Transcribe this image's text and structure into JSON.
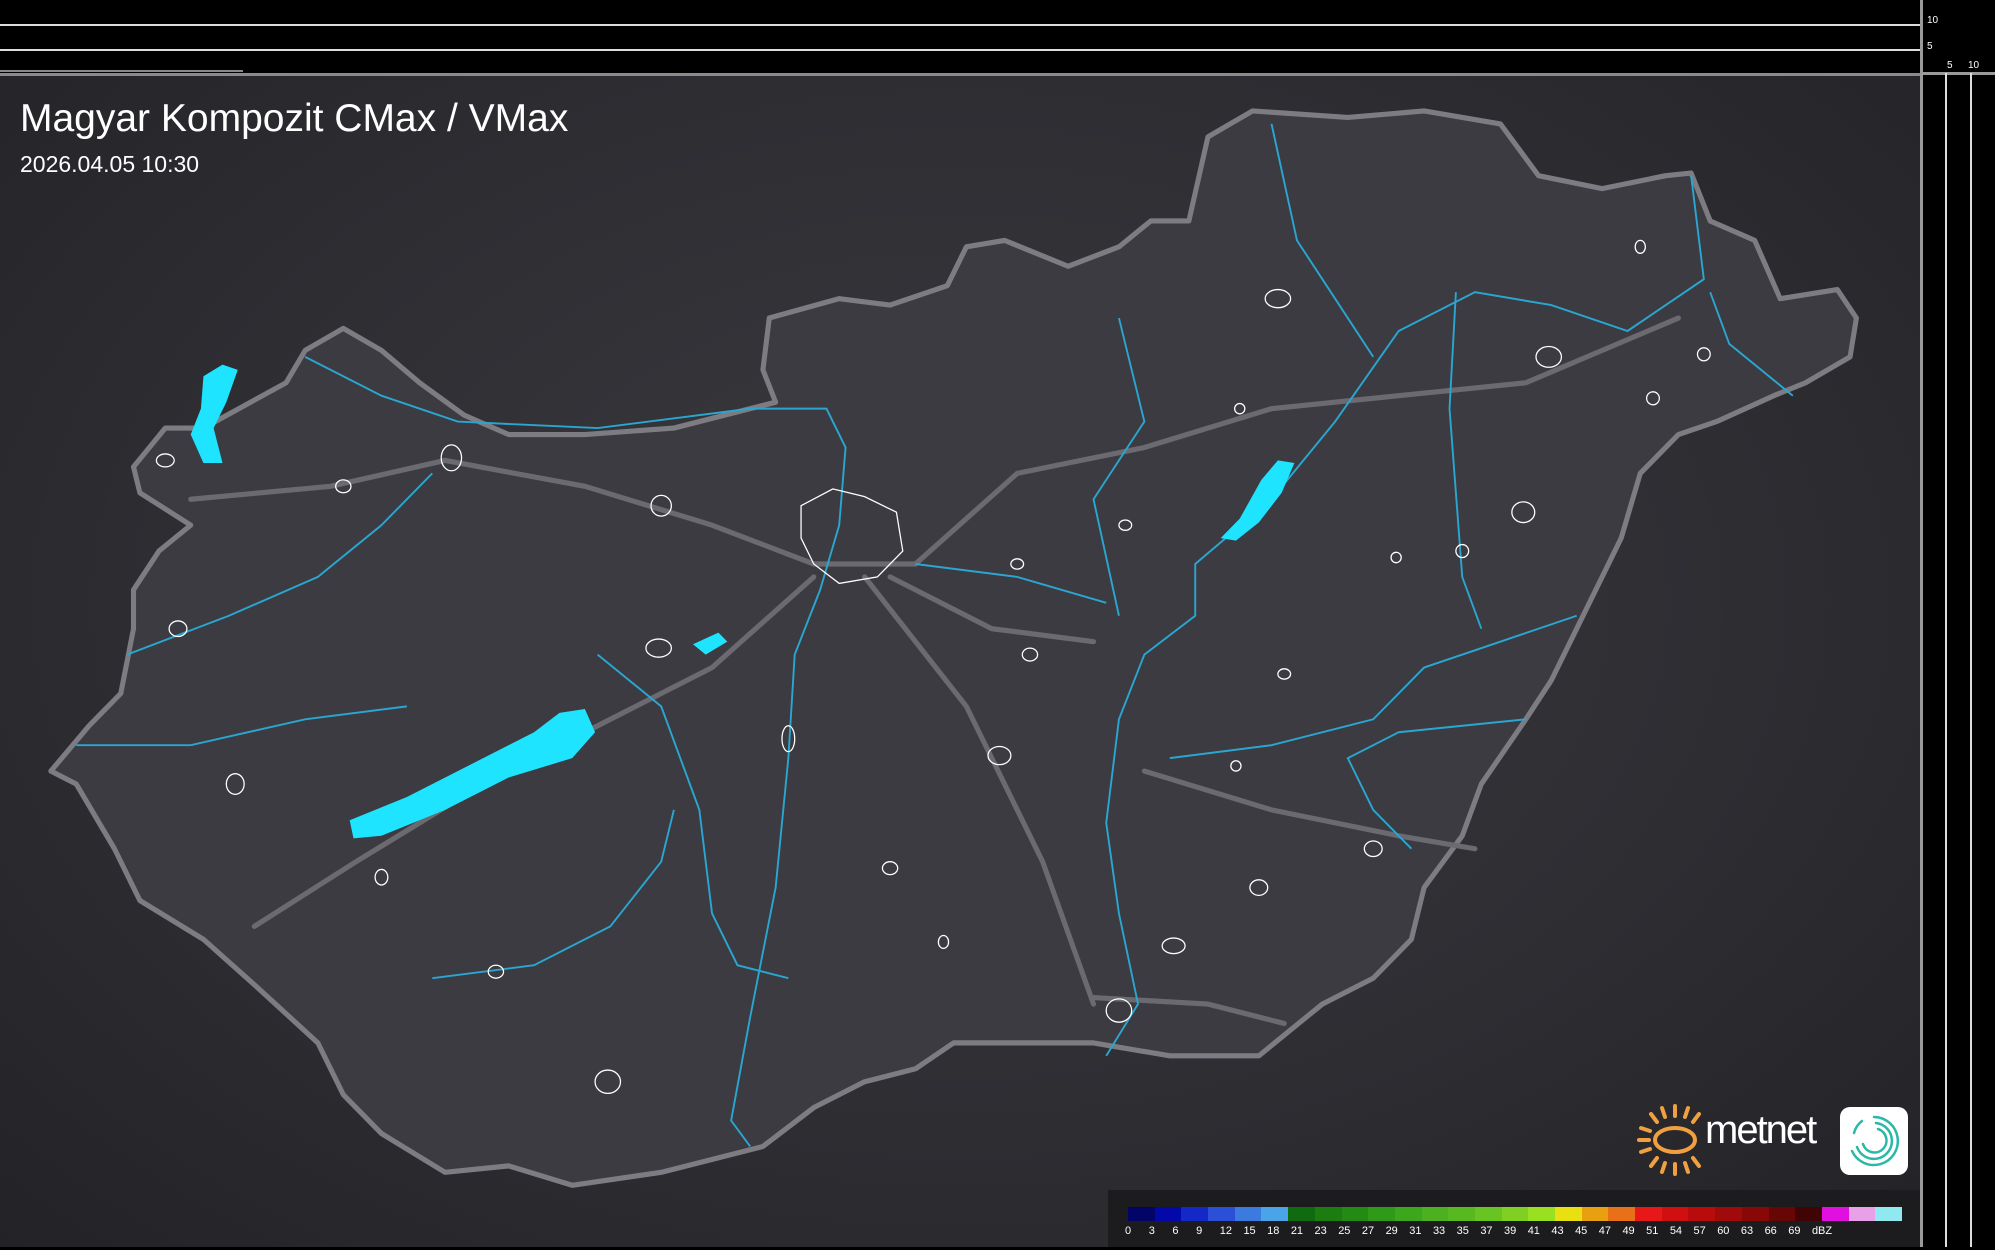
{
  "header": {
    "title": "Magyar Kompozit CMax / VMax",
    "timestamp": "2026.04.05 10:30"
  },
  "scale_ticks": {
    "vertical": [
      "10",
      "5"
    ],
    "horizontal": [
      "5",
      "10"
    ]
  },
  "legend": {
    "unit": "dBZ",
    "labels": [
      "0",
      "3",
      "6",
      "9",
      "12",
      "15",
      "18",
      "21",
      "23",
      "25",
      "27",
      "29",
      "31",
      "33",
      "35",
      "37",
      "39",
      "41",
      "43",
      "45",
      "47",
      "49",
      "51",
      "54",
      "57",
      "60",
      "63",
      "66",
      "69"
    ],
    "colors": [
      "#020468",
      "#0209a8",
      "#1428c8",
      "#2c4fd8",
      "#3b7be0",
      "#4aa5e8",
      "#106a10",
      "#1c7c10",
      "#238a14",
      "#2e9a18",
      "#3ca61c",
      "#4cb020",
      "#58b820",
      "#68c422",
      "#80d024",
      "#98e020",
      "#e8e010",
      "#e8a010",
      "#e87018",
      "#e81818",
      "#d01010",
      "#b80c0c",
      "#a00a0a",
      "#880808",
      "#680606",
      "#400404",
      "#e010e0",
      "#e8a0e8",
      "#90e8f0"
    ]
  },
  "map": {
    "background_color": "#2e2e33",
    "country_fill": "#3b3b41",
    "border_color": "#7c7c82",
    "water_color": "#1ee4ff",
    "river_color": "#2aa6d0"
  },
  "branding": {
    "logo_text": "metnet",
    "logo_color": "#f0a040",
    "app_logo_color": "#2ab8a8"
  }
}
